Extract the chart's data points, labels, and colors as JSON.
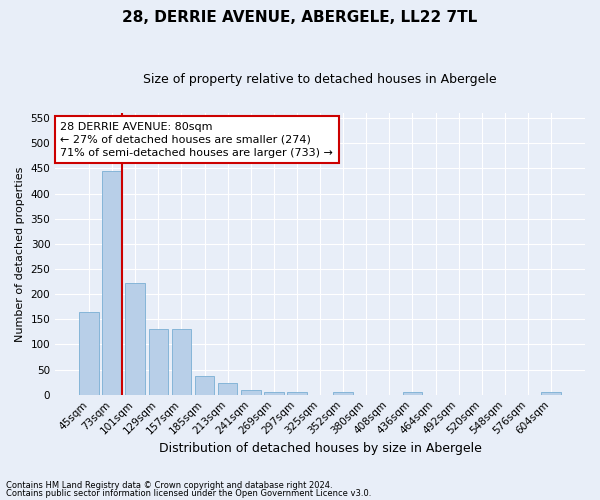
{
  "title": "28, DERRIE AVENUE, ABERGELE, LL22 7TL",
  "subtitle": "Size of property relative to detached houses in Abergele",
  "xlabel": "Distribution of detached houses by size in Abergele",
  "ylabel": "Number of detached properties",
  "categories": [
    "45sqm",
    "73sqm",
    "101sqm",
    "129sqm",
    "157sqm",
    "185sqm",
    "213sqm",
    "241sqm",
    "269sqm",
    "297sqm",
    "325sqm",
    "352sqm",
    "380sqm",
    "408sqm",
    "436sqm",
    "464sqm",
    "492sqm",
    "520sqm",
    "548sqm",
    "576sqm",
    "604sqm"
  ],
  "values": [
    165,
    445,
    222,
    130,
    130,
    37,
    24,
    10,
    6,
    6,
    0,
    5,
    0,
    0,
    5,
    0,
    0,
    0,
    0,
    0,
    5
  ],
  "bar_color": "#b8cfe8",
  "bar_edge_color": "#7aafd4",
  "vline_color": "#cc0000",
  "vline_x_index": 1,
  "annotation_text": "28 DERRIE AVENUE: 80sqm\n← 27% of detached houses are smaller (274)\n71% of semi-detached houses are larger (733) →",
  "annotation_box_facecolor": "#ffffff",
  "annotation_box_edgecolor": "#cc0000",
  "ylim": [
    0,
    560
  ],
  "yticks": [
    0,
    50,
    100,
    150,
    200,
    250,
    300,
    350,
    400,
    450,
    500,
    550
  ],
  "footnote1": "Contains HM Land Registry data © Crown copyright and database right 2024.",
  "footnote2": "Contains public sector information licensed under the Open Government Licence v3.0.",
  "background_color": "#e8eef8",
  "grid_color": "#ffffff",
  "title_fontsize": 11,
  "subtitle_fontsize": 9,
  "xlabel_fontsize": 9,
  "ylabel_fontsize": 8,
  "tick_fontsize": 7.5,
  "annotation_fontsize": 8,
  "footnote_fontsize": 6
}
